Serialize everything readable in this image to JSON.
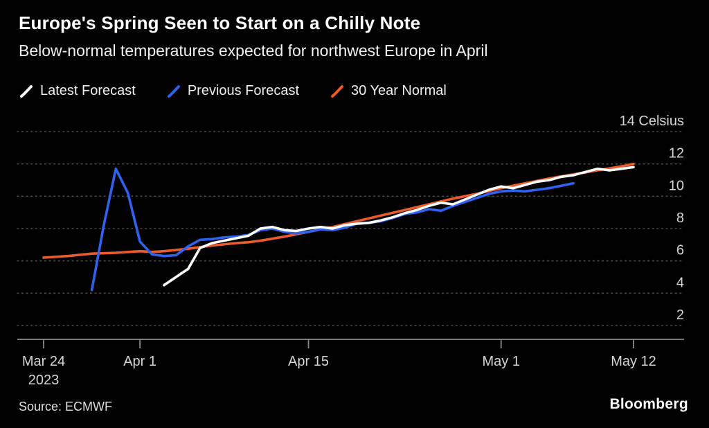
{
  "chart_data": {
    "type": "line",
    "title": "Europe's Spring Seen to Start on a Chilly Note",
    "subtitle": "Below-normal temperatures expected for northwest Europe in April",
    "grid": "horizontal-dotted",
    "legend_position": "top-left",
    "x_axis": {
      "note": "day index relative to first x tick (Mar 24, 2023)",
      "range_days": [
        0,
        49
      ],
      "ticks": [
        {
          "day": 0,
          "label": "Mar 24",
          "sub": "2023"
        },
        {
          "day": 8,
          "label": "Apr 1"
        },
        {
          "day": 22,
          "label": "Apr 15"
        },
        {
          "day": 38,
          "label": "May 1"
        },
        {
          "day": 49,
          "label": "May 12"
        }
      ]
    },
    "y_axis": {
      "ticks": [
        2,
        4,
        6,
        8,
        10,
        12,
        14
      ],
      "range": [
        2,
        14
      ],
      "unit": "Celsius"
    },
    "series": [
      {
        "name": "Latest Forecast",
        "color": "#ffffff",
        "points": [
          [
            10,
            4.5
          ],
          [
            11,
            5.0
          ],
          [
            12,
            5.5
          ],
          [
            13,
            6.8
          ],
          [
            14,
            7.1
          ],
          [
            15,
            7.25
          ],
          [
            16,
            7.4
          ],
          [
            17,
            7.55
          ],
          [
            18,
            8.0
          ],
          [
            19,
            8.1
          ],
          [
            20,
            7.9
          ],
          [
            21,
            7.85
          ],
          [
            22,
            8.0
          ],
          [
            23,
            8.1
          ],
          [
            24,
            8.0
          ],
          [
            25,
            8.2
          ],
          [
            26,
            8.3
          ],
          [
            27,
            8.35
          ],
          [
            28,
            8.5
          ],
          [
            29,
            8.7
          ],
          [
            30,
            8.95
          ],
          [
            31,
            9.15
          ],
          [
            32,
            9.4
          ],
          [
            33,
            9.6
          ],
          [
            34,
            9.5
          ],
          [
            35,
            9.8
          ],
          [
            36,
            10.1
          ],
          [
            37,
            10.4
          ],
          [
            38,
            10.6
          ],
          [
            39,
            10.5
          ],
          [
            40,
            10.7
          ],
          [
            41,
            10.9
          ],
          [
            42,
            11.0
          ],
          [
            43,
            11.2
          ],
          [
            44,
            11.3
          ],
          [
            45,
            11.5
          ],
          [
            46,
            11.7
          ],
          [
            47,
            11.6
          ],
          [
            48,
            11.7
          ],
          [
            49,
            11.8
          ]
        ]
      },
      {
        "name": "Previous Forecast",
        "color": "#2e63f0",
        "points": [
          [
            4,
            4.2
          ],
          [
            5,
            8.2
          ],
          [
            6,
            11.7
          ],
          [
            7,
            10.2
          ],
          [
            8,
            7.2
          ],
          [
            9,
            6.4
          ],
          [
            10,
            6.3
          ],
          [
            11,
            6.35
          ],
          [
            12,
            6.9
          ],
          [
            13,
            7.3
          ],
          [
            14,
            7.35
          ],
          [
            15,
            7.45
          ],
          [
            16,
            7.5
          ],
          [
            17,
            7.6
          ],
          [
            18,
            7.9
          ],
          [
            19,
            8.0
          ],
          [
            20,
            7.8
          ],
          [
            21,
            7.7
          ],
          [
            22,
            7.8
          ],
          [
            23,
            7.95
          ],
          [
            24,
            7.9
          ],
          [
            25,
            8.05
          ],
          [
            26,
            8.3
          ],
          [
            27,
            8.35
          ],
          [
            28,
            8.45
          ],
          [
            29,
            8.65
          ],
          [
            30,
            8.9
          ],
          [
            31,
            9.0
          ],
          [
            32,
            9.2
          ],
          [
            33,
            9.1
          ],
          [
            34,
            9.4
          ],
          [
            35,
            9.65
          ],
          [
            36,
            9.9
          ],
          [
            37,
            10.15
          ],
          [
            38,
            10.3
          ],
          [
            39,
            10.35
          ],
          [
            40,
            10.3
          ],
          [
            41,
            10.4
          ],
          [
            42,
            10.5
          ],
          [
            43,
            10.65
          ],
          [
            44,
            10.8
          ]
        ]
      },
      {
        "name": "30 Year Normal",
        "color": "#eb5b2c",
        "points": [
          [
            0,
            6.2
          ],
          [
            2,
            6.3
          ],
          [
            4,
            6.45
          ],
          [
            6,
            6.5
          ],
          [
            8,
            6.6
          ],
          [
            9,
            6.55
          ],
          [
            10,
            6.6
          ],
          [
            12,
            6.75
          ],
          [
            14,
            6.95
          ],
          [
            16,
            7.1
          ],
          [
            17,
            7.15
          ],
          [
            18,
            7.25
          ],
          [
            20,
            7.5
          ],
          [
            22,
            7.8
          ],
          [
            24,
            8.1
          ],
          [
            26,
            8.45
          ],
          [
            28,
            8.8
          ],
          [
            30,
            9.15
          ],
          [
            32,
            9.5
          ],
          [
            34,
            9.85
          ],
          [
            36,
            10.15
          ],
          [
            38,
            10.5
          ],
          [
            40,
            10.8
          ],
          [
            42,
            11.1
          ],
          [
            44,
            11.35
          ],
          [
            46,
            11.6
          ],
          [
            48,
            11.85
          ],
          [
            49,
            12.0
          ]
        ]
      }
    ]
  },
  "footer": {
    "source": "Source: ECMWF",
    "brand": "Bloomberg"
  },
  "colors": {
    "background": "#000000",
    "gridline": "#4d4d4d",
    "axis": "#8c8c8c",
    "tick_text": "#d6d6d6"
  }
}
